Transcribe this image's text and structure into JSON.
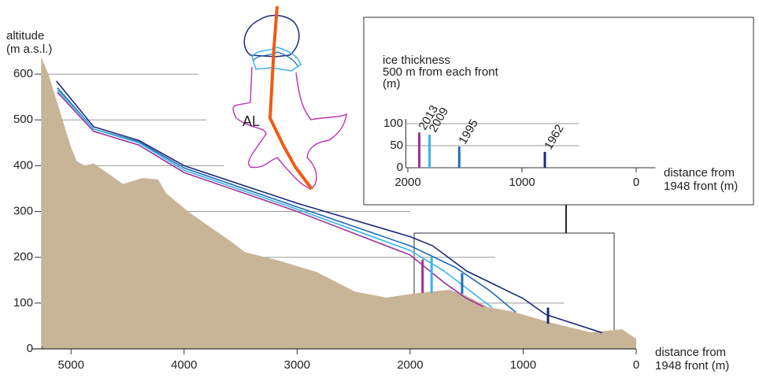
{
  "chart_data": [
    {
      "type": "line",
      "y_label": [
        "altitude",
        "(m a.s.l.)"
      ],
      "x_label": [
        "distance from",
        "1948 front (m)"
      ],
      "xlim": [
        5350,
        0
      ],
      "ylim": [
        0,
        650
      ],
      "xticks": [
        5000,
        4000,
        3000,
        2000,
        1000,
        0
      ],
      "yticks": [
        0,
        100,
        200,
        300,
        400,
        500,
        600
      ],
      "grid_ends": [
        null,
        640,
        1250,
        2000,
        3650,
        3800,
        3880
      ],
      "series": [
        {
          "color": "#c8b597",
          "fill": true,
          "x": [
            5265,
            5200,
            5100,
            5000,
            4950,
            4880,
            4800,
            4540,
            4370,
            4230,
            4160,
            3950,
            3600,
            3460,
            3180,
            2830,
            2490,
            2210,
            1930,
            1650,
            1510,
            1310,
            1100,
            750,
            400,
            125,
            55,
            0
          ],
          "values": [
            637,
            600,
            520,
            440,
            410,
            400,
            405,
            360,
            373,
            370,
            340,
            297,
            237,
            211,
            194,
            168,
            125,
            112,
            122,
            129,
            117,
            91,
            82,
            57,
            36,
            43,
            31,
            22
          ]
        },
        {
          "color": "#1d2a7a",
          "x": [
            5130,
            4800,
            4400,
            4000,
            3000,
            2000,
            1800,
            1500,
            1000,
            800,
            300
          ],
          "values": [
            585,
            485,
            455,
            400,
            318,
            245,
            225,
            170,
            110,
            75,
            35
          ]
        },
        {
          "color": "#1f6db5",
          "x": [
            5120,
            4800,
            4400,
            4000,
            3000,
            2000,
            1600,
            1300,
            1065
          ],
          "values": [
            570,
            480,
            452,
            395,
            310,
            225,
            178,
            128,
            80
          ]
        },
        {
          "color": "#3ab4e6",
          "x": [
            5120,
            4800,
            4400,
            4000,
            3000,
            2000,
            1700,
            1275
          ],
          "values": [
            565,
            480,
            450,
            390,
            305,
            215,
            170,
            90
          ]
        },
        {
          "color": "#a0309a",
          "x": [
            5120,
            4800,
            4400,
            4000,
            3000,
            2000,
            1700,
            1500,
            1350
          ],
          "values": [
            560,
            475,
            445,
            385,
            300,
            205,
            145,
            110,
            92
          ]
        }
      ],
      "thickness_markers": [
        {
          "x": 1890,
          "values": [
            122,
            195
          ],
          "color": "#a0309a"
        },
        {
          "x": 1810,
          "values": [
            122,
            200
          ],
          "color": "#3ab4e6"
        },
        {
          "x": 1540,
          "values": [
            120,
            165
          ],
          "color": "#1f6db5"
        },
        {
          "x": 780,
          "values": [
            55,
            90
          ],
          "color": "#1d2a7a"
        }
      ],
      "map_label": "AL"
    },
    {
      "type": "bar",
      "title": [
        "ice thickness",
        "500 m from each front",
        "(m)"
      ],
      "x_label": [
        "distance from",
        "1948 front (m)"
      ],
      "xlim": [
        2100,
        -100
      ],
      "ylim": [
        0,
        100
      ],
      "xticks": [
        2000,
        1000,
        0
      ],
      "yticks": [
        0,
        50,
        100
      ],
      "grid_end": 500,
      "x": [
        1900,
        1810,
        1550,
        800
      ],
      "labels": [
        "2013",
        "2009",
        "1995",
        "1962"
      ],
      "values": [
        80,
        75,
        48,
        36
      ],
      "colors": [
        "#a0309a",
        "#3ab4e6",
        "#1f6db5",
        "#1d2a7a"
      ]
    }
  ]
}
